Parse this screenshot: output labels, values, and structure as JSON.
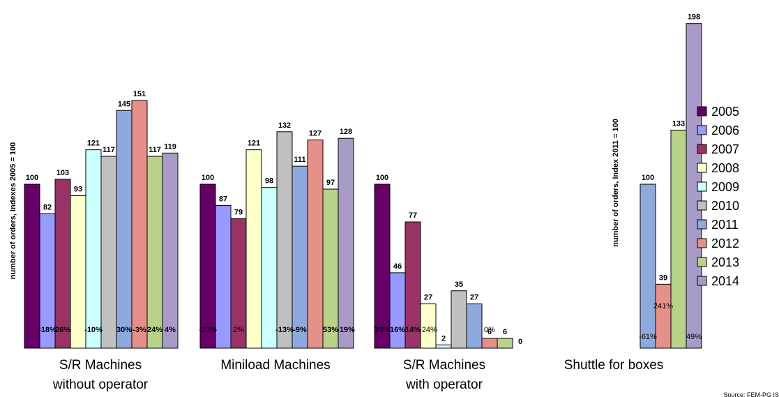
{
  "chart_data": {
    "type": "bar",
    "series_names": [
      "2005",
      "2006",
      "2007",
      "2008",
      "2009",
      "2010",
      "2011",
      "2012",
      "2013",
      "2014"
    ],
    "colors": [
      "#660066",
      "#9999ff",
      "#993366",
      "#ffffcc",
      "#ccffff",
      "#c0c0c0",
      "#8ea9db",
      "#e6908a",
      "#b9d28a",
      "#a99bc8"
    ],
    "ylabel_left": "number of orders, Indexes 2005 = 100",
    "ylabel_right": "number of orders, Index  2011 = 100",
    "source": "Source: FEM-PG IS",
    "groups": [
      {
        "label_line1": "S/R Machines",
        "label_line2": "without operator",
        "years": [
          "2005",
          "2006",
          "2007",
          "2008",
          "2009",
          "2010",
          "2011",
          "2012",
          "2013",
          "2014"
        ],
        "values": [
          100,
          82,
          103,
          93,
          121,
          117,
          145,
          151,
          117,
          119
        ],
        "changes": [
          "",
          "-18%",
          "26%",
          "",
          "-10%",
          "",
          "30%",
          "-3%",
          "24%",
          "4%"
        ]
      },
      {
        "label_line1": "Miniload Machines",
        "label_line2": "",
        "years": [
          "2005",
          "2006",
          "2007",
          "2008",
          "2009",
          "2010",
          "2011",
          "2012",
          "2013",
          "2014"
        ],
        "values": [
          100,
          87,
          79,
          121,
          98,
          132,
          111,
          127,
          97,
          128
        ],
        "changes": [
          "-23%",
          "",
          "2%",
          "",
          "",
          "-13%",
          "-9%",
          "",
          "53%",
          "-19%"
        ]
      },
      {
        "label_line1": "S/R Machines",
        "label_line2": "with operator",
        "years": [
          "2005",
          "2006",
          "2007",
          "2008",
          "2009",
          "2010",
          "2011",
          "2012",
          "2013",
          "2014"
        ],
        "values": [
          100,
          46,
          77,
          27,
          2,
          35,
          27,
          6,
          6,
          0
        ],
        "changes": [
          "35%",
          "16%",
          "14%",
          "-24%",
          "",
          "",
          "",
          "0%",
          "",
          ""
        ]
      },
      {
        "label_line1": "Shuttle for boxes",
        "label_line2": "",
        "years": [
          "2011",
          "2012",
          "2013",
          "2014"
        ],
        "values": [
          100,
          39,
          133,
          198
        ],
        "changes": [
          "-61%",
          "241%",
          "",
          "49%"
        ]
      }
    ]
  }
}
